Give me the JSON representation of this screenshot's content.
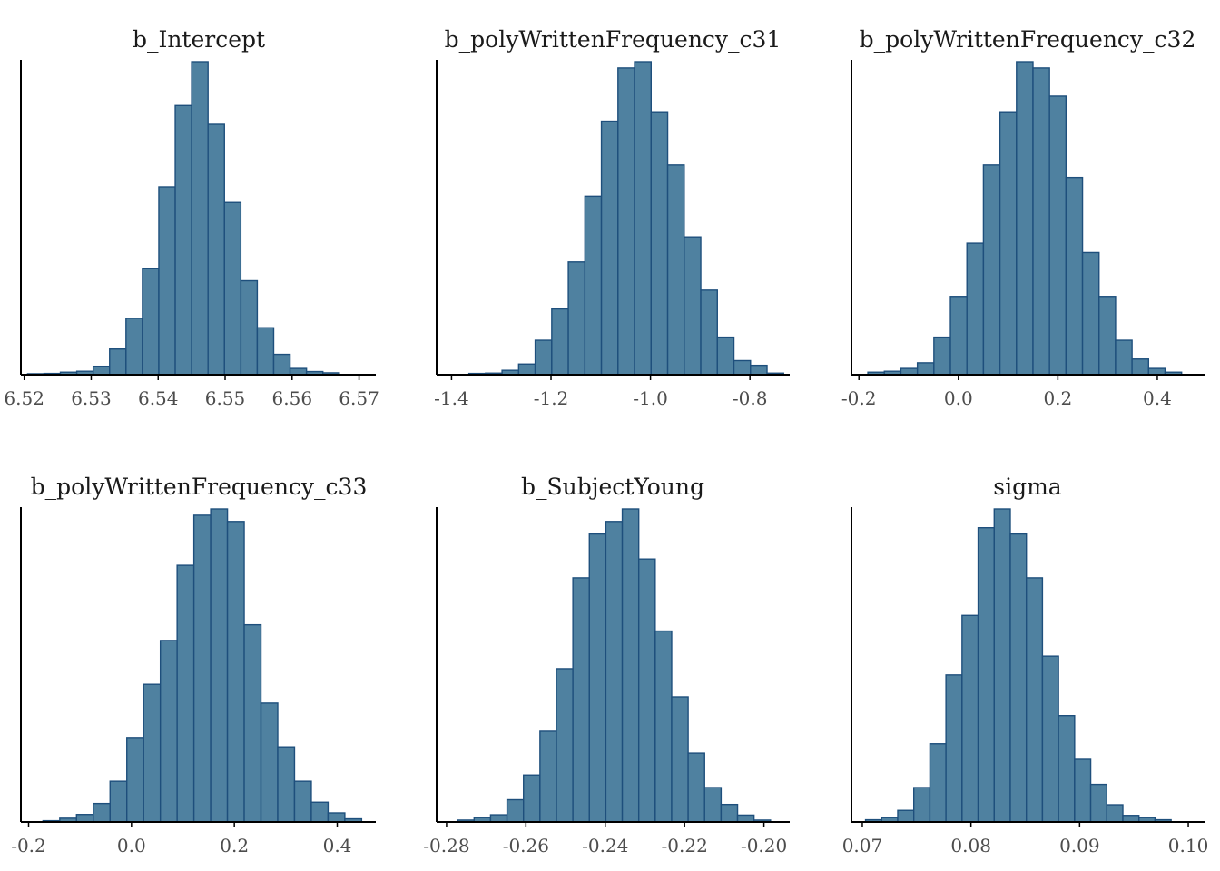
{
  "colors": {
    "bar_fill": "#4f81a0",
    "bar_stroke": "#1e4f7c",
    "axis": "#000000",
    "tick_text": "#4d4d4d",
    "title_text": "#1a1a1a",
    "background": "#ffffff"
  },
  "chart_data": [
    {
      "type": "bar",
      "title": "b_Intercept",
      "xlabel": "",
      "ylabel": "",
      "grid": false,
      "y_axis_ticks": false,
      "xlim": [
        6.5195,
        6.5725
      ],
      "ticks": [
        6.52,
        6.53,
        6.54,
        6.55,
        6.56,
        6.57
      ],
      "tick_labels": [
        "6.52",
        "6.53",
        "6.54",
        "6.55",
        "6.56",
        "6.57"
      ],
      "bin_start": 6.5205,
      "bin_width": 0.00245,
      "values": [
        0.3,
        0.4,
        0.8,
        1.1,
        2.7,
        8.2,
        18,
        34,
        60,
        86,
        100,
        80,
        55,
        30,
        15,
        6.5,
        2,
        1,
        0.6
      ]
    },
    {
      "type": "bar",
      "title": "b_polyWrittenFrequency_c31",
      "xlabel": "",
      "ylabel": "",
      "grid": false,
      "y_axis_ticks": false,
      "xlim": [
        -1.43,
        -0.72
      ],
      "ticks": [
        -1.4,
        -1.2,
        -1.0,
        -0.8
      ],
      "tick_labels": [
        "-1.4",
        "-1.2",
        "-1.0",
        "-0.8"
      ],
      "bin_start": -1.365,
      "bin_width": 0.0333,
      "values": [
        0.4,
        0.5,
        1.4,
        3.4,
        11,
        21,
        36,
        57,
        81,
        98,
        100,
        84,
        67,
        44,
        27,
        12,
        4.5,
        3,
        0.5
      ]
    },
    {
      "type": "bar",
      "title": "b_polyWrittenFrequency_c32",
      "xlabel": "",
      "ylabel": "",
      "grid": false,
      "y_axis_ticks": false,
      "xlim": [
        -0.215,
        0.495
      ],
      "ticks": [
        -0.2,
        0.0,
        0.2,
        0.4
      ],
      "tick_labels": [
        "-0.2",
        "0.0",
        "0.2",
        "0.4"
      ],
      "bin_start": -0.182,
      "bin_width": 0.0332,
      "values": [
        0.8,
        1.1,
        2,
        3.8,
        12,
        25,
        42,
        67,
        84,
        100,
        98,
        89,
        63,
        39,
        25,
        11,
        5,
        2,
        0.8
      ]
    },
    {
      "type": "bar",
      "title": "b_polyWrittenFrequency_c33",
      "xlabel": "",
      "ylabel": "",
      "grid": false,
      "y_axis_ticks": false,
      "xlim": [
        -0.215,
        0.475
      ],
      "ticks": [
        -0.2,
        0.0,
        0.2,
        0.4
      ],
      "tick_labels": [
        "-0.2",
        "0.0",
        "0.2",
        "0.4"
      ],
      "bin_start": -0.172,
      "bin_width": 0.0326,
      "values": [
        0.4,
        1.2,
        2.4,
        5.9,
        13,
        27,
        44,
        58,
        82,
        98,
        100,
        96,
        63,
        38,
        24,
        13,
        6.3,
        2.9,
        1
      ]
    },
    {
      "type": "bar",
      "title": "b_SubjectYoung",
      "xlabel": "",
      "ylabel": "",
      "grid": false,
      "y_axis_ticks": false,
      "xlim": [
        -0.2825,
        -0.1935
      ],
      "ticks": [
        -0.28,
        -0.26,
        -0.24,
        -0.22,
        -0.2
      ],
      "tick_labels": [
        "-0.28",
        "-0.26",
        "-0.24",
        "-0.22",
        "-0.20"
      ],
      "bin_start": -0.2772,
      "bin_width": 0.00415,
      "values": [
        0.6,
        1.4,
        2.3,
        7.1,
        15,
        29,
        49,
        78,
        92,
        96,
        100,
        84,
        61,
        40,
        22,
        11,
        5.6,
        2.2,
        0.6
      ]
    },
    {
      "type": "bar",
      "title": "sigma",
      "xlabel": "",
      "ylabel": "",
      "grid": false,
      "y_axis_ticks": false,
      "xlim": [
        0.069,
        0.1015
      ],
      "ticks": [
        0.07,
        0.08,
        0.09,
        0.1
      ],
      "tick_labels": [
        "0.07",
        "0.08",
        "0.09",
        "0.10"
      ],
      "bin_start": 0.0703,
      "bin_width": 0.00148,
      "values": [
        0.7,
        1.4,
        3.7,
        11,
        25,
        47,
        66,
        94,
        100,
        92,
        78,
        53,
        34,
        20,
        12,
        5.5,
        2.1,
        1.4,
        0.7
      ]
    }
  ]
}
